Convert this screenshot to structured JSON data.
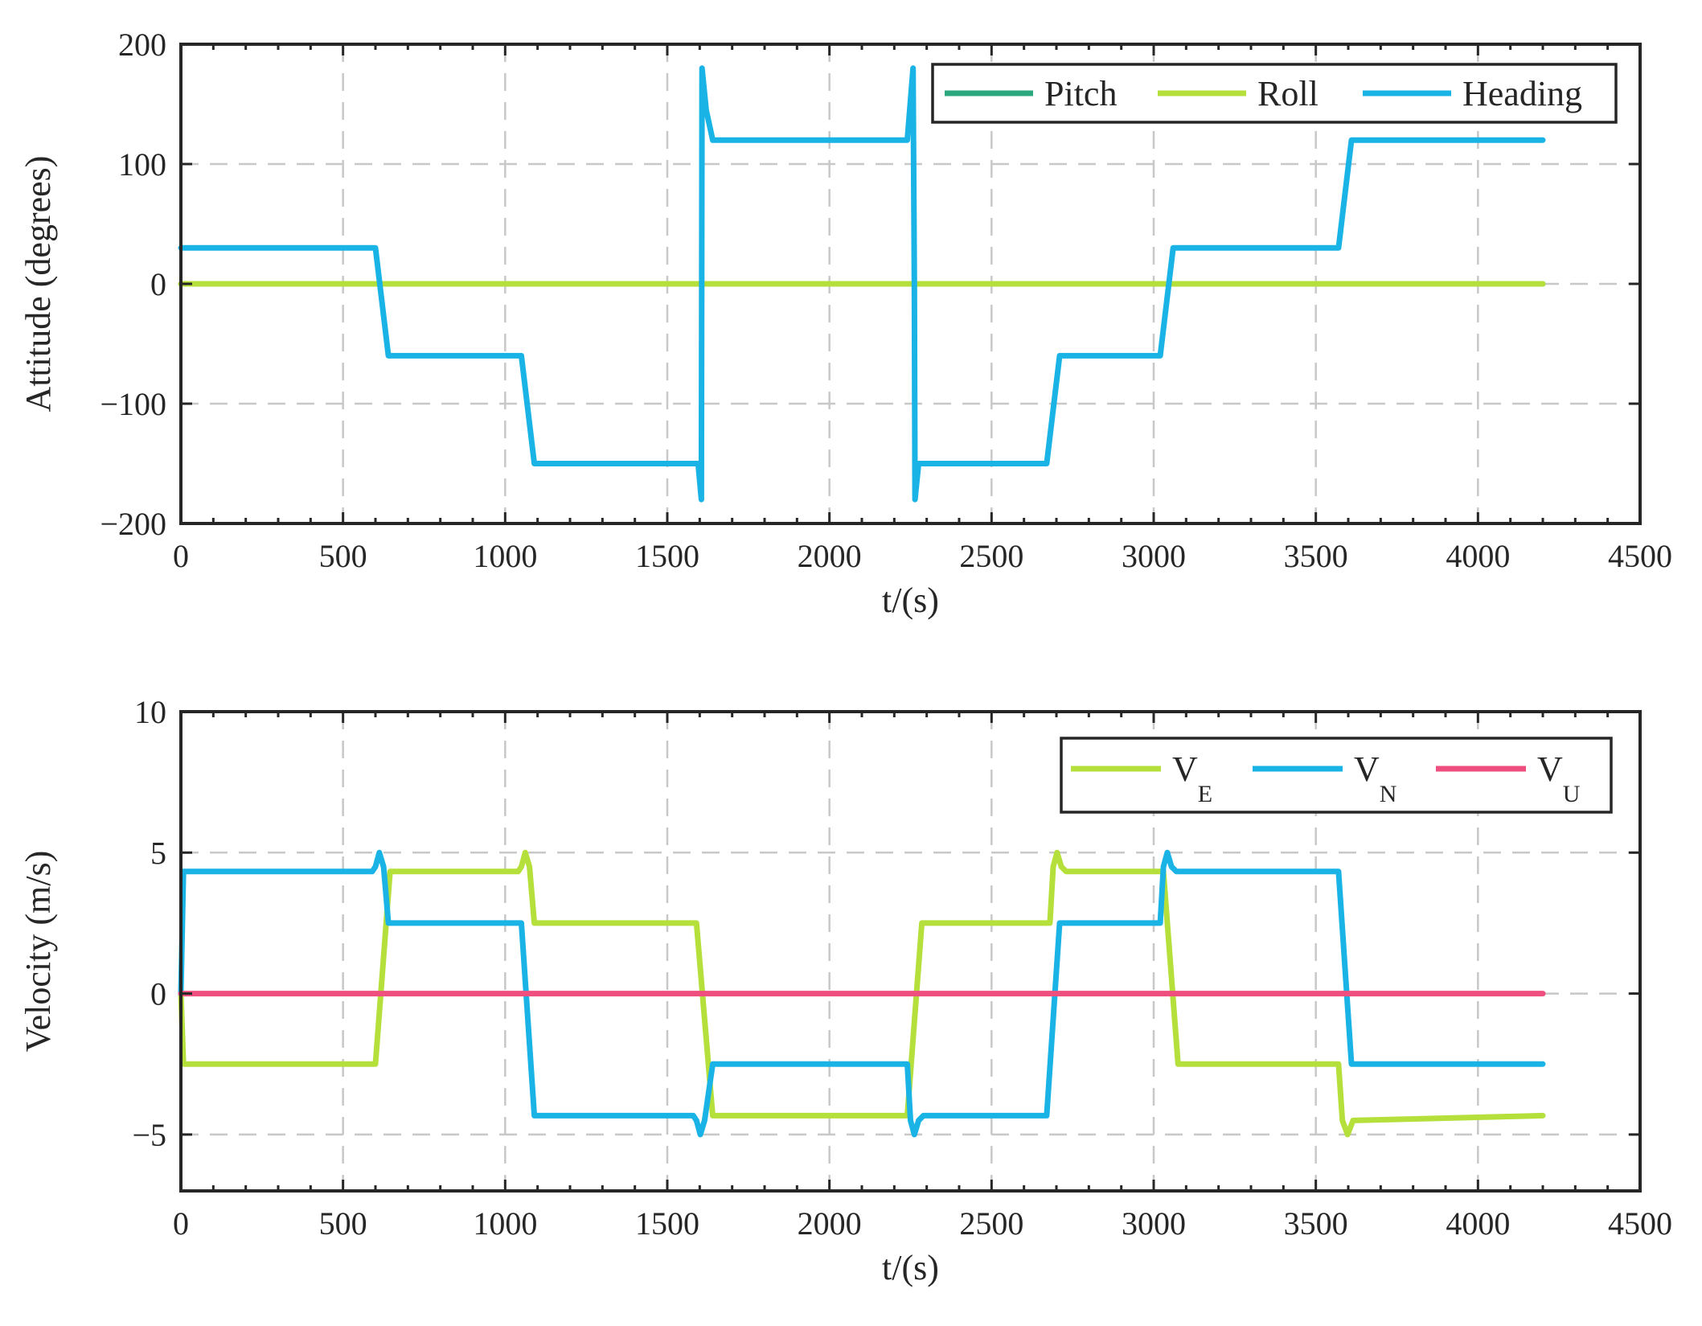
{
  "chart_data": [
    {
      "id": "attitude",
      "type": "line",
      "xlabel": "t/(s)",
      "ylabel": "Attitude (degrees)",
      "xlim": [
        0,
        4500
      ],
      "ylim": [
        -200,
        200
      ],
      "xticks": [
        0,
        500,
        1000,
        1500,
        2000,
        2500,
        3000,
        3500,
        4000,
        4500
      ],
      "yticks": [
        -200,
        -100,
        0,
        100,
        200
      ],
      "grid": true,
      "legend_position": "top-right",
      "series": [
        {
          "name": "Pitch",
          "color": "#2ca87f",
          "x": [
            0,
            4200
          ],
          "y": [
            0,
            0
          ]
        },
        {
          "name": "Roll",
          "color": "#b5e03c",
          "x": [
            0,
            4200
          ],
          "y": [
            0,
            0
          ]
        },
        {
          "name": "Heading",
          "color": "#1ab3e6",
          "x": [
            0,
            600,
            640,
            1050,
            1090,
            1595,
            1605,
            1607,
            1620,
            1640,
            2240,
            2258,
            2262,
            2264,
            2275,
            2290,
            2670,
            2710,
            3020,
            3060,
            3570,
            3610,
            4200
          ],
          "y": [
            30,
            30,
            -60,
            -60,
            -150,
            -150,
            -180,
            180,
            145,
            120,
            120,
            180,
            0,
            -180,
            -150,
            -150,
            -150,
            -60,
            -60,
            30,
            30,
            120,
            120
          ]
        }
      ]
    },
    {
      "id": "velocity",
      "type": "line",
      "xlabel": "t/(s)",
      "ylabel": "Velocity (m/s)",
      "xlim": [
        0,
        4500
      ],
      "ylim": [
        -7,
        10
      ],
      "xticks": [
        0,
        500,
        1000,
        1500,
        2000,
        2500,
        3000,
        3500,
        4000,
        4500
      ],
      "yticks": [
        -5,
        0,
        5,
        10
      ],
      "grid": true,
      "legend_position": "top-right",
      "series": [
        {
          "name": "V",
          "subscript": "E",
          "color": "#b5e03c",
          "x": [
            0,
            8,
            600,
            645,
            1040,
            1050,
            1062,
            1075,
            1090,
            1590,
            1640,
            2240,
            2285,
            2680,
            2690,
            2702,
            2715,
            2730,
            3030,
            3075,
            3570,
            3582,
            3598,
            3615,
            4200
          ],
          "y": [
            0,
            -2.5,
            -2.5,
            4.33,
            4.33,
            4.5,
            5.0,
            4.5,
            2.5,
            2.5,
            -4.33,
            -4.33,
            2.5,
            2.5,
            4.5,
            5.0,
            4.5,
            4.33,
            4.33,
            -2.5,
            -2.5,
            -4.5,
            -5.0,
            -4.5,
            -4.33
          ]
        },
        {
          "name": "V",
          "subscript": "N",
          "color": "#1ab3e6",
          "x": [
            0,
            8,
            590,
            600,
            612,
            625,
            640,
            1050,
            1090,
            1580,
            1590,
            1602,
            1615,
            1640,
            2240,
            2250,
            2262,
            2275,
            2290,
            2670,
            2710,
            3020,
            3030,
            3042,
            3055,
            3070,
            3570,
            3610,
            4200
          ],
          "y": [
            0,
            4.33,
            4.33,
            4.5,
            5.0,
            4.5,
            2.5,
            2.5,
            -4.33,
            -4.33,
            -4.5,
            -5.0,
            -4.5,
            -2.5,
            -2.5,
            -4.5,
            -5.0,
            -4.5,
            -4.33,
            -4.33,
            2.5,
            2.5,
            4.5,
            5.0,
            4.5,
            4.33,
            4.33,
            -2.5,
            -2.5
          ]
        },
        {
          "name": "V",
          "subscript": "U",
          "color": "#ee4f7e",
          "x": [
            0,
            4200
          ],
          "y": [
            0,
            0
          ]
        }
      ]
    }
  ]
}
